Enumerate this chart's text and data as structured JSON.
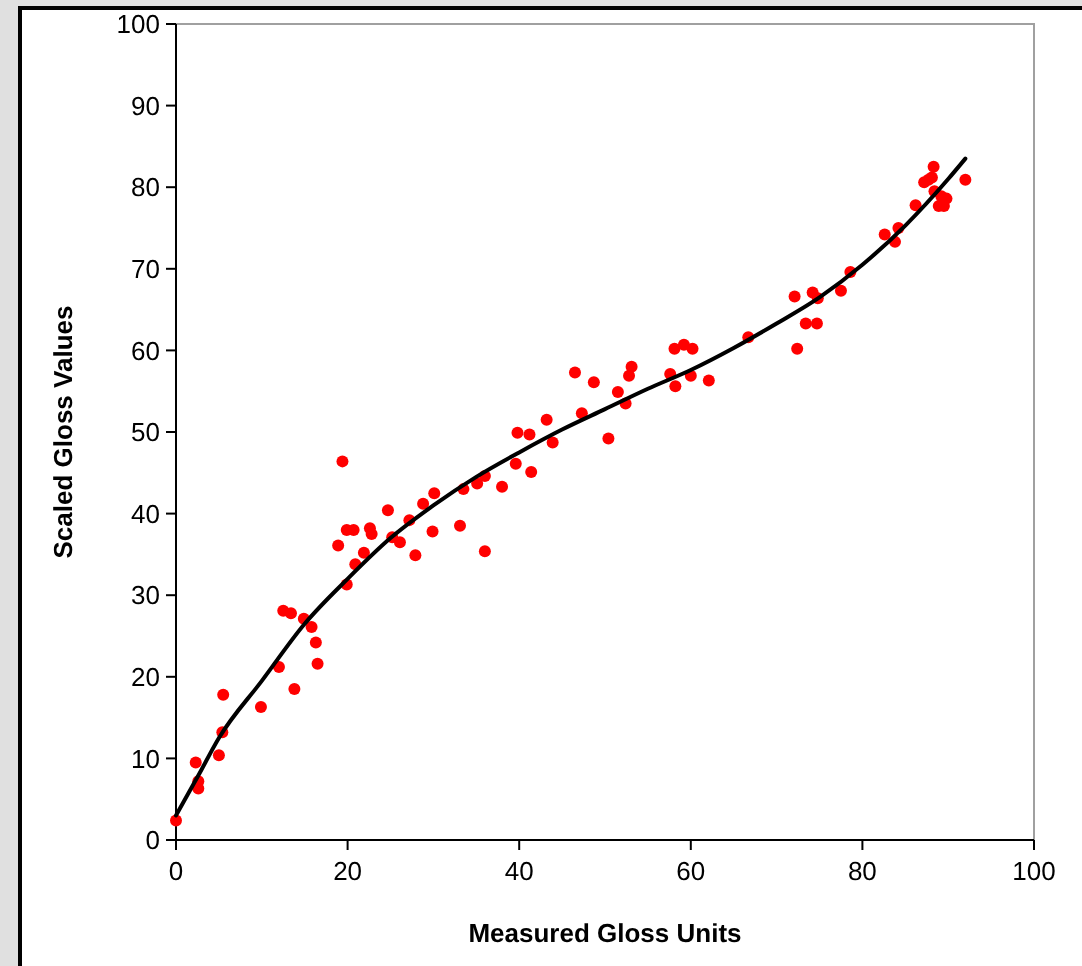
{
  "chart_data": {
    "type": "scatter",
    "xlabel": "Measured Gloss Units",
    "ylabel": "Scaled Gloss Values",
    "xlim": [
      0,
      100
    ],
    "ylim": [
      0,
      100
    ],
    "xticks": [
      0,
      20,
      40,
      60,
      80,
      100
    ],
    "yticks": [
      0,
      10,
      20,
      30,
      40,
      50,
      60,
      70,
      80,
      90,
      100
    ],
    "grid": false,
    "marker": "circle",
    "series": [
      {
        "color": "#ff0000",
        "x": [
          0,
          2.3,
          2.6,
          2.6,
          5.0,
          5.5,
          5.4,
          9.9,
          12.0,
          12.5,
          13.4,
          13.8,
          14.9,
          15.8,
          16.3,
          16.5,
          18.9,
          19.4,
          19.9,
          19.9,
          20.7,
          20.9,
          21.9,
          22.6,
          22.8,
          24.7,
          25.2,
          26.1,
          27.2,
          27.9,
          28.8,
          29.9,
          30.1,
          33.1,
          33.5,
          35.1,
          36.0,
          36.0,
          38.0,
          39.6,
          39.8,
          41.2,
          41.4,
          43.2,
          43.9,
          46.5,
          47.3,
          48.7,
          50.4,
          51.5,
          52.4,
          52.8,
          53.1,
          57.6,
          58.1,
          58.2,
          59.2,
          60.0,
          60.2,
          62.1,
          66.7,
          72.1,
          72.4,
          73.4,
          74.2,
          74.7,
          74.8,
          77.5,
          78.6,
          82.6,
          83.8,
          84.2,
          86.2,
          87.2,
          87.7,
          88.3,
          88.1,
          88.4,
          88.9,
          89.2,
          89.5,
          89.8,
          92.0
        ],
        "values": [
          2.4,
          9.5,
          7.2,
          6.3,
          10.4,
          17.8,
          13.2,
          16.3,
          21.2,
          28.1,
          27.8,
          18.5,
          27.1,
          26.1,
          24.2,
          21.6,
          36.1,
          46.4,
          31.3,
          38.0,
          38.0,
          33.8,
          35.2,
          38.2,
          37.5,
          40.4,
          37.1,
          36.5,
          39.2,
          34.9,
          41.2,
          37.8,
          42.5,
          38.5,
          43.0,
          43.7,
          44.6,
          35.4,
          43.3,
          46.1,
          49.9,
          49.7,
          45.1,
          51.5,
          48.7,
          57.3,
          52.3,
          56.1,
          49.2,
          54.9,
          53.5,
          56.9,
          58.0,
          57.1,
          60.2,
          55.6,
          60.7,
          56.9,
          60.2,
          56.3,
          61.6,
          66.6,
          60.2,
          63.3,
          67.1,
          63.3,
          66.4,
          67.3,
          69.6,
          74.2,
          73.3,
          75.0,
          77.8,
          80.6,
          80.9,
          82.5,
          81.2,
          79.5,
          77.7,
          78.9,
          77.7,
          78.6,
          80.9
        ]
      },
      {
        "type": "line",
        "color": "#000000",
        "marker": "none",
        "line_style": "solid",
        "x": [
          0,
          2.6,
          5,
          10,
          15,
          20,
          25,
          30,
          35,
          40,
          45,
          50,
          55,
          60,
          65,
          70,
          75,
          80,
          85,
          90,
          92
        ],
        "values": [
          3.0,
          7.9,
          12.5,
          19.5,
          26.5,
          32,
          37,
          41,
          44.5,
          47.5,
          50.3,
          52.8,
          55.3,
          57.6,
          60.3,
          63.3,
          66.5,
          70.5,
          75.3,
          81,
          83.5
        ]
      }
    ]
  }
}
